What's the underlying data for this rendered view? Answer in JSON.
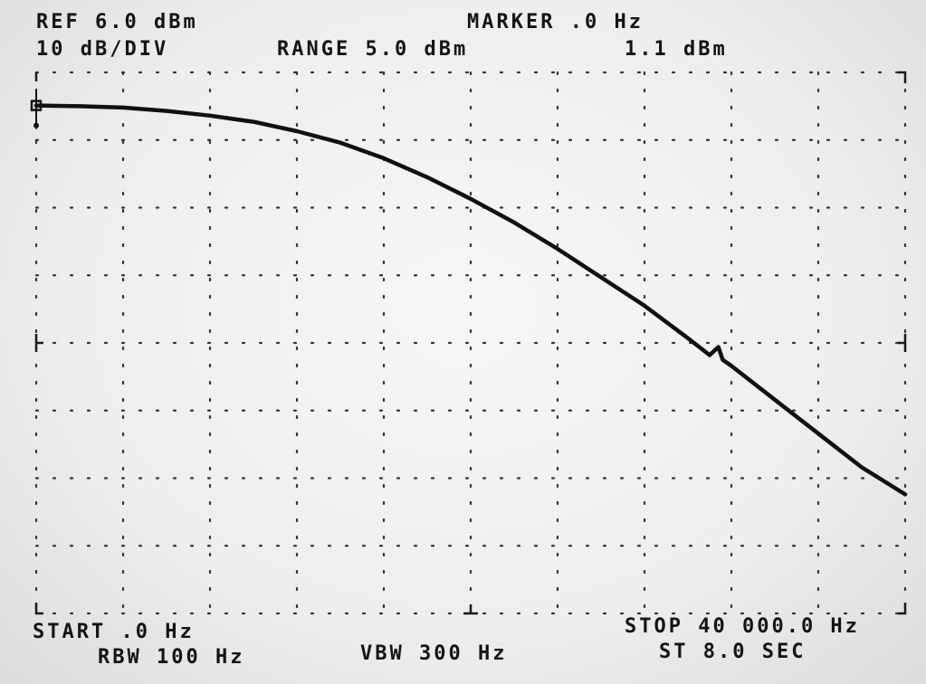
{
  "header": {
    "ref": "REF 6.0 dBm",
    "scale": "10 dB/DIV",
    "range": "RANGE 5.0 dBm",
    "marker_label": "MARKER .0 Hz",
    "marker_value": "1.1 dBm"
  },
  "footer": {
    "start": "START .0 Hz",
    "stop": "STOP 40 000.0 Hz",
    "rbw": "RBW 100 Hz",
    "vbw": "VBW 300 Hz",
    "sweep": "ST 8.0 SEC"
  },
  "colors": {
    "trace": "#111111",
    "grid": "#333333",
    "background": "#eeeeee"
  },
  "chart_data": {
    "type": "line",
    "title": "",
    "xlabel": "",
    "ylabel": "",
    "xlim": [
      0,
      40000
    ],
    "ylim": [
      -74,
      6
    ],
    "x_divisions": 10,
    "y_divisions": 8,
    "grid": true,
    "marker": {
      "x": 0,
      "y": 1.1
    },
    "series": [
      {
        "x": [
          0,
          2000,
          4000,
          6000,
          8000,
          10000,
          12000,
          14000,
          16000,
          18000,
          20000,
          22000,
          24000,
          26000,
          28000,
          30000,
          31000,
          31400,
          31600,
          32000,
          34000,
          36000,
          38000,
          40000
        ],
        "y": [
          1.1,
          1.0,
          0.8,
          0.3,
          -0.4,
          -1.3,
          -2.7,
          -4.4,
          -6.7,
          -9.5,
          -12.7,
          -16.2,
          -20.1,
          -24.3,
          -28.5,
          -33.3,
          -35.8,
          -34.6,
          -36.5,
          -37.4,
          -42.4,
          -47.4,
          -52.4,
          -56.4
        ]
      }
    ]
  }
}
